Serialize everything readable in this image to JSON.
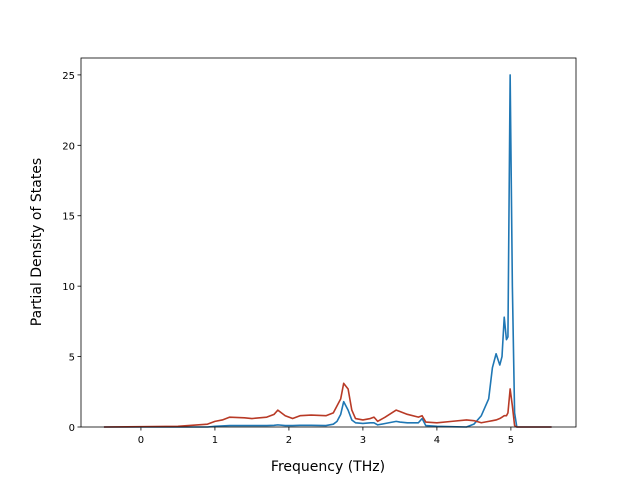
{
  "chart_data": {
    "type": "line",
    "xlabel": "Frequency (THz)",
    "ylabel": "Partial Density of States",
    "x": [
      -0.5,
      0,
      0.5,
      0.9,
      1.0,
      1.1,
      1.2,
      1.4,
      1.5,
      1.7,
      1.8,
      1.85,
      1.95,
      2.05,
      2.15,
      2.3,
      2.5,
      2.6,
      2.65,
      2.7,
      2.74,
      2.8,
      2.85,
      2.9,
      3.0,
      3.1,
      3.15,
      3.2,
      3.3,
      3.45,
      3.5,
      3.6,
      3.75,
      3.8,
      3.85,
      4.0,
      4.2,
      4.4,
      4.5,
      4.6,
      4.7,
      4.75,
      4.8,
      4.85,
      4.88,
      4.91,
      4.94,
      4.96,
      4.99,
      5.02,
      5.05,
      5.08,
      5.1,
      5.55
    ],
    "series": [
      {
        "color": "#1f77b4",
        "values": [
          0,
          0,
          0,
          0,
          0.05,
          0.08,
          0.1,
          0.1,
          0.1,
          0.1,
          0.12,
          0.15,
          0.1,
          0.1,
          0.12,
          0.12,
          0.1,
          0.2,
          0.4,
          0.9,
          1.8,
          1.2,
          0.5,
          0.3,
          0.25,
          0.3,
          0.3,
          0.15,
          0.25,
          0.4,
          0.35,
          0.3,
          0.3,
          0.6,
          0.1,
          0.05,
          0.02,
          0,
          0.2,
          0.8,
          2.0,
          4.2,
          5.2,
          4.4,
          5.0,
          7.8,
          6.2,
          6.4,
          25,
          10,
          1,
          0,
          0,
          0
        ]
      },
      {
        "color": "#b83a26",
        "values": [
          0,
          0.02,
          0.05,
          0.2,
          0.4,
          0.5,
          0.7,
          0.65,
          0.6,
          0.7,
          0.9,
          1.2,
          0.8,
          0.6,
          0.8,
          0.85,
          0.8,
          1.0,
          1.5,
          2.0,
          3.1,
          2.7,
          1.2,
          0.6,
          0.5,
          0.6,
          0.7,
          0.4,
          0.7,
          1.2,
          1.1,
          0.9,
          0.7,
          0.8,
          0.35,
          0.3,
          0.4,
          0.5,
          0.45,
          0.3,
          0.4,
          0.45,
          0.5,
          0.6,
          0.7,
          0.8,
          0.8,
          1.0,
          2.7,
          1.5,
          0.1,
          0,
          0,
          0
        ]
      }
    ],
    "xlim": [
      -0.81,
      5.88
    ],
    "ylim": [
      0,
      26.2
    ],
    "xticks": [
      0,
      1,
      2,
      3,
      4,
      5
    ],
    "yticks": [
      0,
      5,
      10,
      15,
      20,
      25
    ]
  }
}
